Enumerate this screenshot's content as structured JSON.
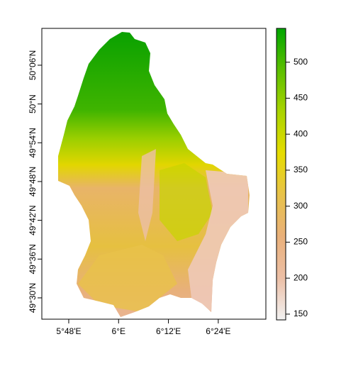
{
  "map": {
    "type": "raster",
    "xlim": [
      5.692,
      6.591
    ],
    "ylim": [
      49.445,
      50.195
    ],
    "xticks": [
      {
        "value": 5.8,
        "label": "5°48'E"
      },
      {
        "value": 6.0,
        "label": "6°E"
      },
      {
        "value": 6.2,
        "label": "6°12'E"
      },
      {
        "value": 6.4,
        "label": "6°24'E"
      }
    ],
    "yticks": [
      {
        "value": 49.5,
        "label": "49°30'N"
      },
      {
        "value": 49.6,
        "label": "49°36'N"
      },
      {
        "value": 49.7,
        "label": "49°42'N"
      },
      {
        "value": 49.8,
        "label": "49°48'N"
      },
      {
        "value": 49.9,
        "label": "49°54'N"
      },
      {
        "value": 50.0,
        "label": "50°N"
      },
      {
        "value": 50.1,
        "label": "50°06'N"
      }
    ],
    "legend": {
      "lim": [
        142,
        547
      ],
      "ticks": [
        150,
        200,
        250,
        300,
        350,
        400,
        450,
        500
      ],
      "colors": [
        "#f2f2f2",
        "#ecbfa6",
        "#e9b07a",
        "#e8c24a",
        "#e6dc00",
        "#aad400",
        "#5cbf00",
        "#00a600"
      ]
    }
  }
}
